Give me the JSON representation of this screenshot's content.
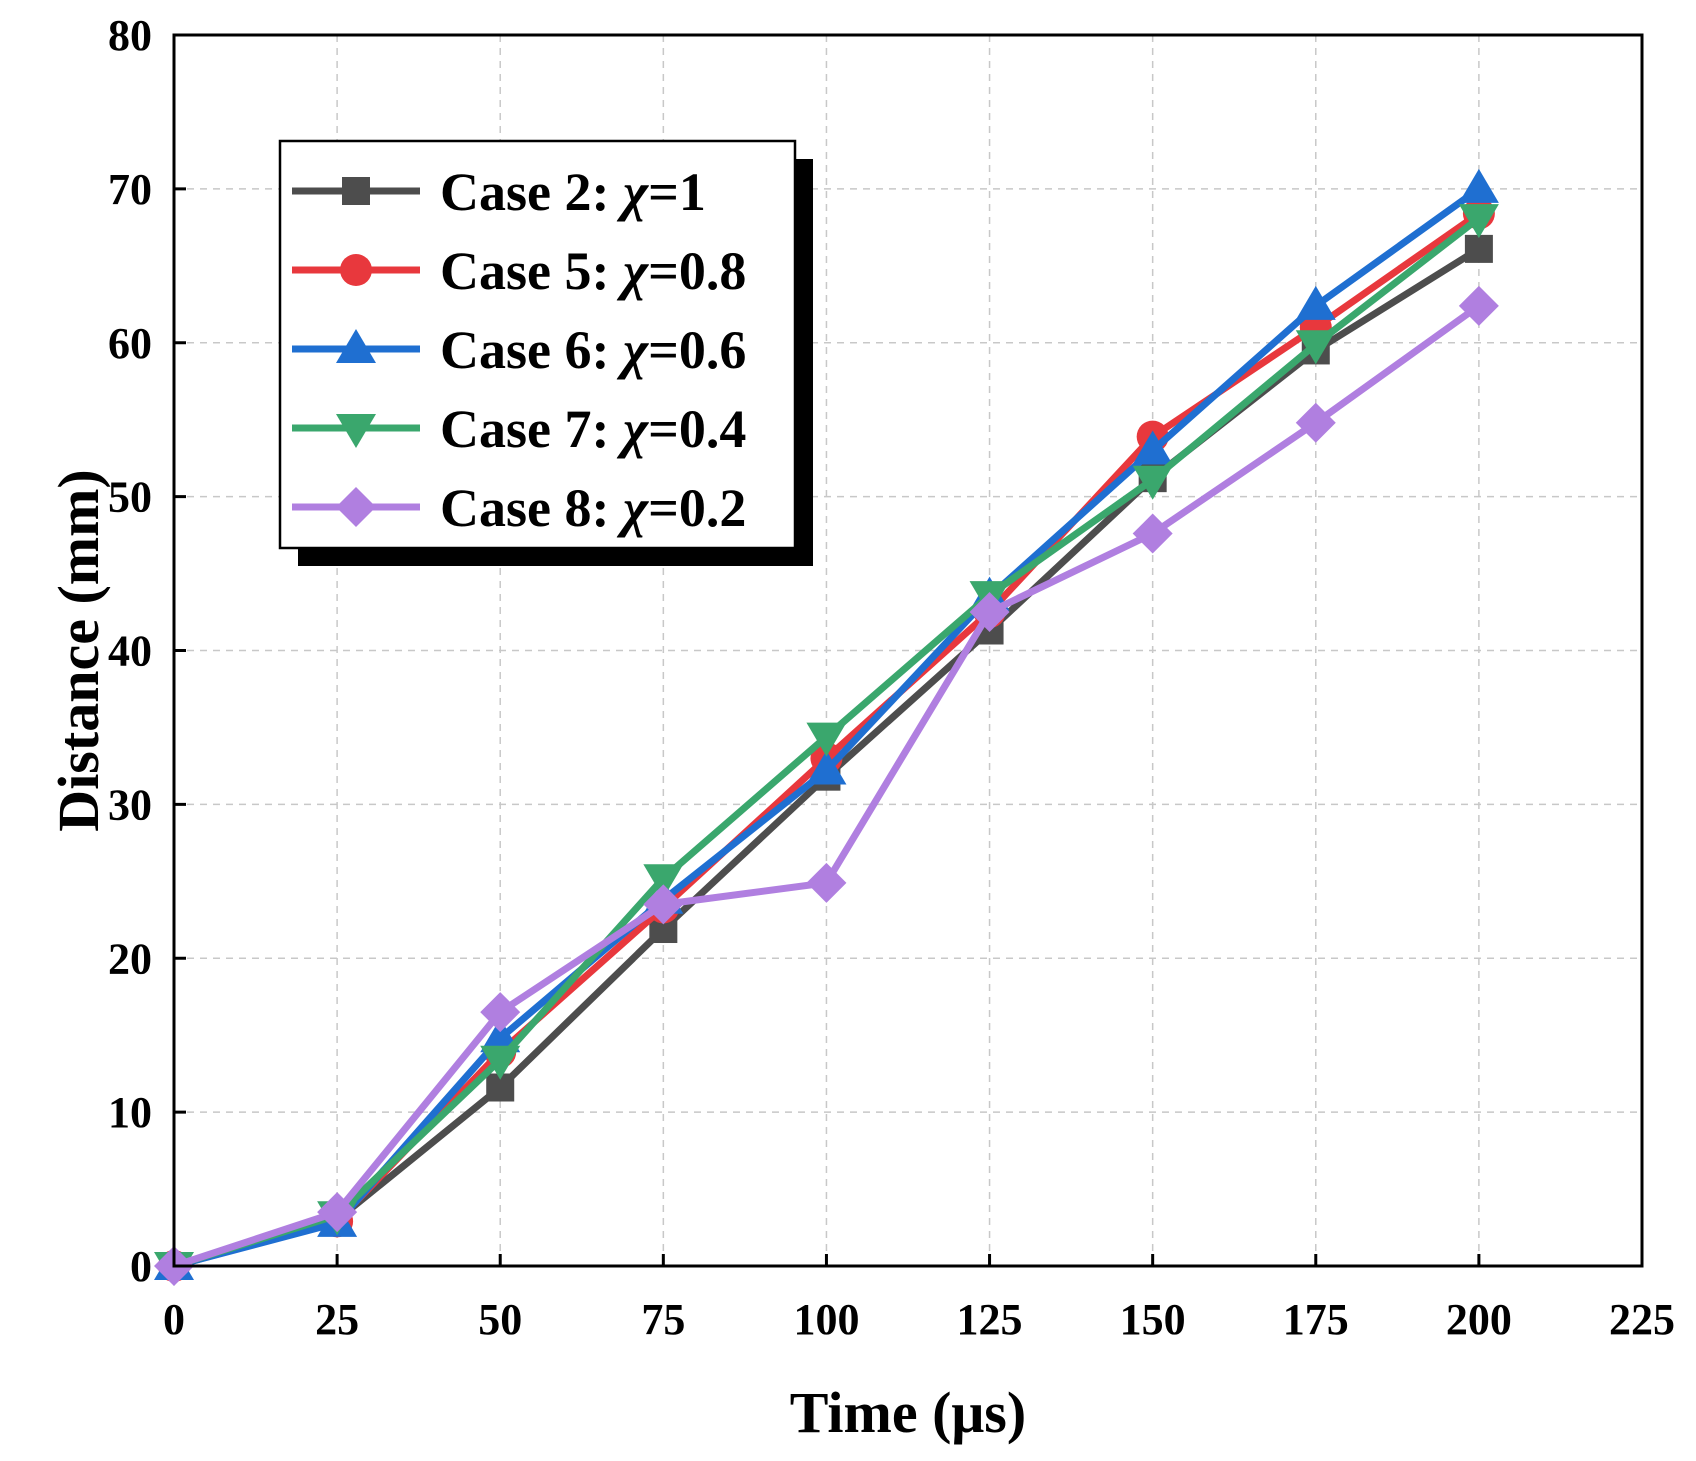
{
  "chart_data": {
    "type": "line",
    "title": "",
    "xlabel": "Time (μs)",
    "ylabel": "Distance (mm)",
    "xlim": [
      0,
      225
    ],
    "ylim": [
      0,
      80
    ],
    "xticks": [
      0,
      25,
      50,
      75,
      100,
      125,
      150,
      175,
      200,
      225
    ],
    "yticks": [
      0,
      10,
      20,
      30,
      40,
      50,
      60,
      70,
      80
    ],
    "grid": true,
    "legend_position": "top-left",
    "x": [
      0,
      25,
      50,
      75,
      100,
      125,
      150,
      175,
      200
    ],
    "series": [
      {
        "name": "Case 2: χ=1",
        "label_prefix": "Case 2: ",
        "label_chi": "χ",
        "label_value": "=1",
        "color": "#4d4d4d",
        "marker": "square",
        "values": [
          0,
          3.0,
          11.6,
          21.9,
          31.8,
          41.3,
          51.2,
          59.5,
          66.1
        ]
      },
      {
        "name": "Case 5: χ=0.8",
        "label_prefix": "Case 5: ",
        "label_chi": "χ",
        "label_value": "=0.8",
        "color": "#e8383d",
        "marker": "circle",
        "values": [
          0,
          2.9,
          13.9,
          23.3,
          33.0,
          42.5,
          53.9,
          61.0,
          68.4
        ]
      },
      {
        "name": "Case 6: χ=0.6",
        "label_prefix": "Case 6: ",
        "label_chi": "χ",
        "label_value": "=0.6",
        "color": "#1f6fd1",
        "marker": "triangle-up",
        "values": [
          0,
          2.8,
          14.8,
          23.8,
          32.2,
          43.5,
          53.0,
          62.4,
          70.0
        ]
      },
      {
        "name": "Case 7: χ=0.4",
        "label_prefix": "Case 7: ",
        "label_chi": "χ",
        "label_value": "=0.4",
        "color": "#3aa76d",
        "marker": "triangle-down",
        "values": [
          0,
          3.3,
          13.4,
          25.2,
          34.4,
          43.6,
          51.1,
          59.9,
          68.1
        ]
      },
      {
        "name": "Case 8: χ=0.2",
        "label_prefix": "Case 8: ",
        "label_chi": "χ",
        "label_value": "=0.2",
        "color": "#b07fe0",
        "marker": "diamond",
        "values": [
          0,
          3.5,
          16.5,
          23.5,
          24.9,
          42.5,
          47.6,
          54.8,
          62.4
        ]
      }
    ]
  }
}
